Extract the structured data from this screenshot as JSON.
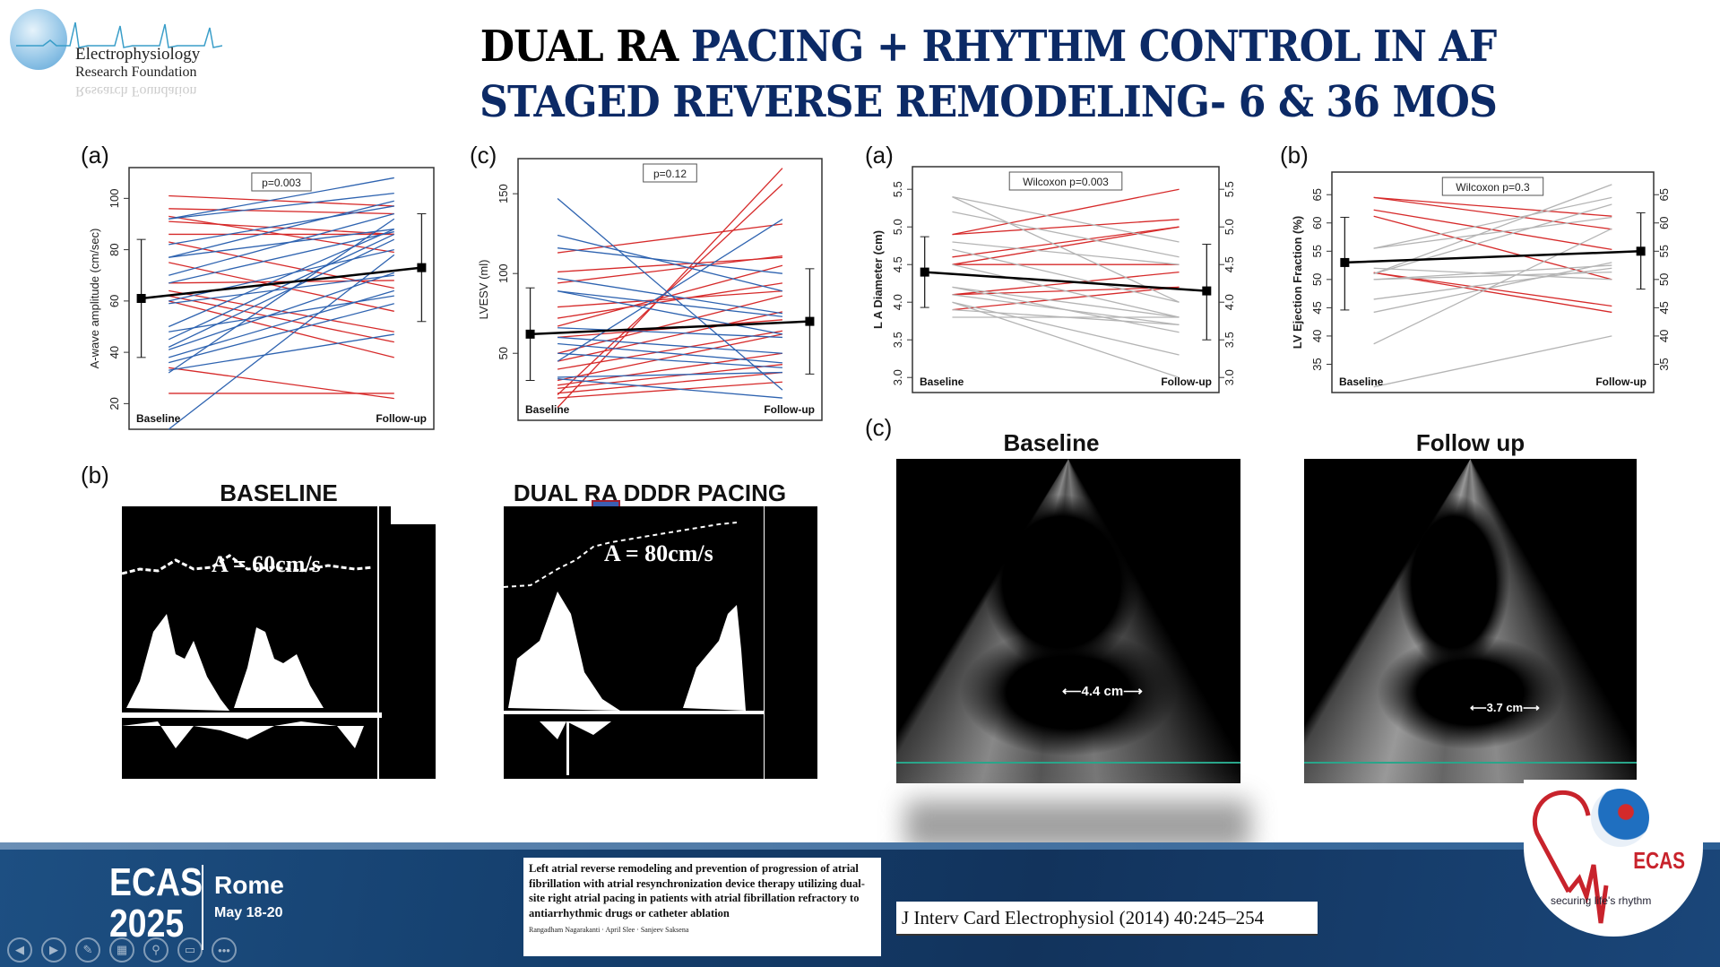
{
  "logo": {
    "line1": "Electrophysiology",
    "line2": "Research Foundation"
  },
  "title": {
    "line1_black": "DUAL RA ",
    "line1_navy": "PACING + RHYTHM CONTROL IN AF",
    "line2": "STAGED REVERSE REMODELING- 6 & 36 MOS"
  },
  "colors": {
    "navy": "#0c2a66",
    "red": "#d62a2a",
    "blue": "#2e63b0",
    "gray": "#b4b4b4"
  },
  "chart_data": [
    {
      "id": "awave",
      "panel": "(a)",
      "type": "line",
      "ylabel": "A-wave amplitude (cm/sec)",
      "stat": "p=0.003",
      "categories": [
        "Baseline",
        "Follow-up"
      ],
      "yticks": [
        20,
        40,
        60,
        80,
        100
      ],
      "ylim": [
        10,
        112
      ],
      "mean": [
        61,
        73
      ],
      "err": [
        [
          38,
          84
        ],
        [
          52,
          94
        ]
      ],
      "right_axis": false,
      "series": [
        [
          101,
          97,
          "r"
        ],
        [
          96,
          94,
          "r"
        ],
        [
          93,
          79,
          "r"
        ],
        [
          91,
          86,
          "r"
        ],
        [
          86,
          86,
          "r"
        ],
        [
          75,
          56,
          "r"
        ],
        [
          67,
          68,
          "r"
        ],
        [
          64,
          48,
          "r"
        ],
        [
          62,
          44,
          "r"
        ],
        [
          60,
          38,
          "r"
        ],
        [
          34,
          22,
          "r"
        ],
        [
          24,
          24,
          "r"
        ],
        [
          83,
          65,
          "r"
        ],
        [
          92,
          108,
          "b"
        ],
        [
          92,
          102,
          "b"
        ],
        [
          82,
          97,
          "b"
        ],
        [
          77,
          99,
          "b"
        ],
        [
          77,
          88,
          "b"
        ],
        [
          70,
          94,
          "b"
        ],
        [
          67,
          87,
          "b"
        ],
        [
          60,
          80,
          "b"
        ],
        [
          59,
          70,
          "b"
        ],
        [
          50,
          88,
          "b"
        ],
        [
          45,
          86,
          "b"
        ],
        [
          42,
          84,
          "b"
        ],
        [
          41,
          71,
          "b"
        ],
        [
          38,
          64,
          "b"
        ],
        [
          36,
          59,
          "b"
        ],
        [
          33,
          47,
          "b"
        ],
        [
          32,
          92,
          "b"
        ],
        [
          48,
          62,
          "b"
        ],
        [
          10,
          78,
          "b"
        ]
      ]
    },
    {
      "id": "lvesv",
      "panel": "(c)",
      "type": "line",
      "ylabel": "LVESV (ml)",
      "stat": "p=0.12",
      "categories": [
        "Baseline",
        "Follow-up"
      ],
      "yticks": [
        50,
        100,
        150
      ],
      "ylim": [
        8,
        172
      ],
      "mean": [
        62,
        70
      ],
      "err": [
        [
          33,
          91
        ],
        [
          37,
          103
        ]
      ],
      "right_axis": false,
      "series": [
        [
          16,
          166,
          "r"
        ],
        [
          24,
          156,
          "r"
        ],
        [
          113,
          131,
          "r"
        ],
        [
          101,
          110,
          "r"
        ],
        [
          94,
          111,
          "r"
        ],
        [
          79,
          89,
          "r"
        ],
        [
          72,
          94,
          "r"
        ],
        [
          67,
          105,
          "r"
        ],
        [
          50,
          86,
          "r"
        ],
        [
          45,
          76,
          "r"
        ],
        [
          40,
          64,
          "r"
        ],
        [
          33,
          62,
          "r"
        ],
        [
          30,
          50,
          "r"
        ],
        [
          28,
          43,
          "r"
        ],
        [
          25,
          38,
          "r"
        ],
        [
          22,
          32,
          "r"
        ],
        [
          60,
          71,
          "r"
        ],
        [
          147,
          27,
          "b"
        ],
        [
          124,
          89,
          "b"
        ],
        [
          116,
          100,
          "b"
        ],
        [
          97,
          75,
          "b"
        ],
        [
          89,
          73,
          "b"
        ],
        [
          89,
          62,
          "b"
        ],
        [
          66,
          60,
          "b"
        ],
        [
          60,
          50,
          "b"
        ],
        [
          56,
          44,
          "b"
        ],
        [
          50,
          41,
          "b"
        ],
        [
          35,
          38,
          "b"
        ],
        [
          34,
          22,
          "b"
        ],
        [
          45,
          134,
          "b"
        ]
      ]
    },
    {
      "id": "la",
      "panel": "(a)",
      "type": "line",
      "ylabel": "L A Diameter (cm)",
      "stat": "Wilcoxon p=0.003",
      "categories": [
        "Baseline",
        "Follow-up"
      ],
      "yticks": [
        "3.0",
        "3.5",
        "4.0",
        "4.5",
        "5.0",
        "5.5"
      ],
      "ylim": [
        2.8,
        5.8
      ],
      "mean": [
        4.4,
        4.15
      ],
      "err": [
        [
          3.93,
          4.87
        ],
        [
          3.5,
          4.77
        ]
      ],
      "right_axis": true,
      "series": [
        [
          4.9,
          5.5,
          "r"
        ],
        [
          4.9,
          5.1,
          "r"
        ],
        [
          4.6,
          5.0,
          "r"
        ],
        [
          4.5,
          5.0,
          "r"
        ],
        [
          4.5,
          4.5,
          "r"
        ],
        [
          4.1,
          4.4,
          "r"
        ],
        [
          4.1,
          4.2,
          "r"
        ],
        [
          3.9,
          4.2,
          "r"
        ],
        [
          5.4,
          4.0,
          "g"
        ],
        [
          5.4,
          4.8,
          "g"
        ],
        [
          5.2,
          4.6,
          "g"
        ],
        [
          4.8,
          4.5,
          "g"
        ],
        [
          4.7,
          4.0,
          "g"
        ],
        [
          4.5,
          3.8,
          "g"
        ],
        [
          4.2,
          3.8,
          "g"
        ],
        [
          4.2,
          3.6,
          "g"
        ],
        [
          4.1,
          3.7,
          "g"
        ],
        [
          4.0,
          3.3,
          "g"
        ],
        [
          4.0,
          3.0,
          "g"
        ],
        [
          3.9,
          3.7,
          "g"
        ],
        [
          3.8,
          3.8,
          "g"
        ]
      ]
    },
    {
      "id": "lvef",
      "panel": "(b)",
      "type": "line",
      "ylabel": "LV Ejection Fraction (%)",
      "stat": "Wilcoxon p=0.3",
      "categories": [
        "Baseline",
        "Follow-up"
      ],
      "yticks": [
        35,
        40,
        45,
        50,
        55,
        60,
        65
      ],
      "ylim": [
        30,
        69
      ],
      "mean": [
        53,
        55
      ],
      "err": [
        [
          44.6,
          61
        ],
        [
          48.3,
          61.8
        ]
      ],
      "right_axis": true,
      "series": [
        [
          64.5,
          61.2,
          "r"
        ],
        [
          64.5,
          58.9,
          "r"
        ],
        [
          62.3,
          55.3,
          "r"
        ],
        [
          61.2,
          50,
          "r"
        ],
        [
          51.2,
          45.3,
          "r"
        ],
        [
          51.2,
          44.2,
          "r"
        ],
        [
          55.5,
          61,
          "g"
        ],
        [
          55.5,
          64.5,
          "g"
        ],
        [
          51,
          66.8,
          "g"
        ],
        [
          51,
          63.3,
          "g"
        ],
        [
          50,
          52.5,
          "g"
        ],
        [
          50,
          51.3,
          "g"
        ],
        [
          46.5,
          52,
          "g"
        ],
        [
          44.2,
          53,
          "g"
        ],
        [
          38.6,
          59,
          "g"
        ],
        [
          31,
          40,
          "g"
        ],
        [
          52,
          50,
          "g"
        ]
      ]
    }
  ],
  "doppler": {
    "panel": "(b)",
    "left_title": "BASELINE",
    "left_value": "A = 60cm/s",
    "right_title": "DUAL RA DDDR PACING",
    "right_value": "A = 80cm/s"
  },
  "echo": {
    "panel": "(c)",
    "left_title": "Baseline",
    "left_value": "4.4 cm",
    "right_title": "Follow up",
    "right_value": "3.7 cm"
  },
  "footer": {
    "event_line1": "ECAS",
    "event_line2": "2025",
    "city": "Rome",
    "dates": "May 18-20",
    "paper_title": "Left atrial reverse remodeling and prevention of progression of atrial fibrillation with atrial resynchronization device therapy utilizing dual-site right atrial pacing in patients with atrial fibrillation refractory to antiarrhythmic drugs or catheter ablation",
    "paper_authors": "Rangadham Nagarakanti · April Slee · Sanjeev Saksena",
    "citation": "J Interv Card Electrophysiol (2014) 40:245–254",
    "ecas_logo": "ECAS",
    "ecas_tagline": "securing life's rhythm"
  },
  "nav_icons": [
    "previous-icon",
    "next-icon",
    "pen-icon",
    "slides-icon",
    "zoom-icon",
    "camera-off-icon",
    "more-icon"
  ]
}
